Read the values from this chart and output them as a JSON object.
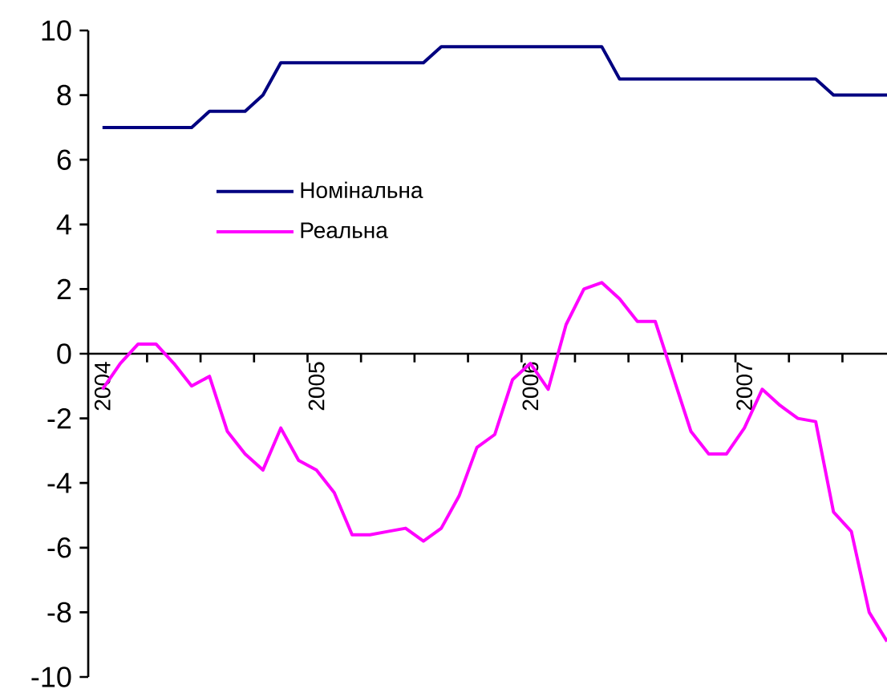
{
  "chart_data": {
    "type": "line",
    "categories": [
      "2004",
      null,
      null,
      null,
      null,
      null,
      null,
      null,
      null,
      null,
      null,
      null,
      "2005",
      null,
      null,
      null,
      null,
      null,
      null,
      null,
      null,
      null,
      null,
      null,
      "2006",
      null,
      null,
      null,
      null,
      null,
      null,
      null,
      null,
      null,
      null,
      null,
      "2007",
      null,
      null,
      null,
      null,
      null,
      null,
      null,
      null
    ],
    "series": [
      {
        "name": "Номінальна",
        "color": "#000080",
        "values": [
          7,
          7,
          7,
          7,
          7,
          7,
          7.5,
          7.5,
          7.5,
          8,
          9,
          9,
          9,
          9,
          9,
          9,
          9,
          9,
          9,
          9.5,
          9.5,
          9.5,
          9.5,
          9.5,
          9.5,
          9.5,
          9.5,
          9.5,
          9.5,
          8.5,
          8.5,
          8.5,
          8.5,
          8.5,
          8.5,
          8.5,
          8.5,
          8.5,
          8.5,
          8.5,
          8.5,
          8,
          8,
          8,
          8
        ]
      },
      {
        "name": "Реальна",
        "color": "#ff00ff",
        "values": [
          -1.1,
          -0.3,
          0.3,
          0.3,
          -0.3,
          -1.0,
          -0.7,
          -2.4,
          -3.1,
          -3.6,
          -2.3,
          -3.3,
          -3.6,
          -4.3,
          -5.6,
          -5.6,
          -5.5,
          -5.4,
          -5.8,
          -5.4,
          -4.4,
          -2.9,
          -2.5,
          -0.8,
          -0.3,
          -1.1,
          0.9,
          2.0,
          2.2,
          1.7,
          1.0,
          1.0,
          -0.7,
          -2.4,
          -3.1,
          -3.1,
          -2.3,
          -1.1,
          -1.6,
          -2.0,
          -2.1,
          -4.9,
          -5.5,
          -8.0,
          -8.9
        ]
      }
    ],
    "ylim": [
      -10,
      10
    ],
    "yticks": [
      -10,
      -8,
      -6,
      -4,
      -2,
      0,
      2,
      4,
      6,
      8,
      10
    ],
    "grid": false,
    "legend": "top left"
  }
}
